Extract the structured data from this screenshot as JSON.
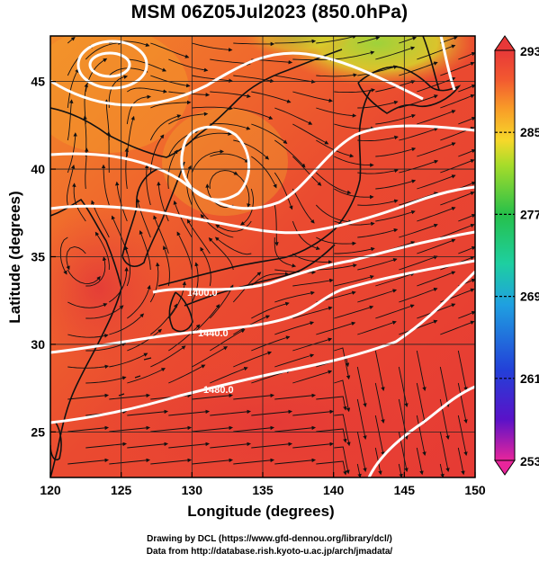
{
  "title": "MSM 06Z05Jul2023 (850.0hPa)",
  "xlabel": "Longitude (degrees)",
  "ylabel": "Latitude  (degrees)",
  "credits": [
    "Drawing by DCL (https://www.gfd-dennou.org/library/dcl/)",
    "Data from http://database.rish.kyoto-u.ac.jp/arch/jmadata/"
  ],
  "map": {
    "lon_range": [
      120,
      150
    ],
    "lat_range": [
      22.4,
      47.6
    ],
    "lon_ticks": [
      "120",
      "125",
      "130",
      "135",
      "140",
      "145",
      "150"
    ],
    "lat_ticks": [
      "25",
      "30",
      "35",
      "40",
      "45"
    ],
    "shading": "temperature",
    "overlay": "wind streamlines",
    "contour_labels": [
      "1400.0",
      "1440.0",
      "1480.0"
    ]
  },
  "colorbar": {
    "min": 253,
    "max": 293,
    "tick_labels": [
      "293",
      "285",
      "277",
      "269",
      "261",
      "253"
    ],
    "colors": [
      "#e8259b",
      "#5a12c8",
      "#2340d8",
      "#1fa0e0",
      "#1ecfa0",
      "#26c04a",
      "#a6dc2a",
      "#f6d82a",
      "#f89a28",
      "#f25830",
      "#e83838"
    ]
  }
}
